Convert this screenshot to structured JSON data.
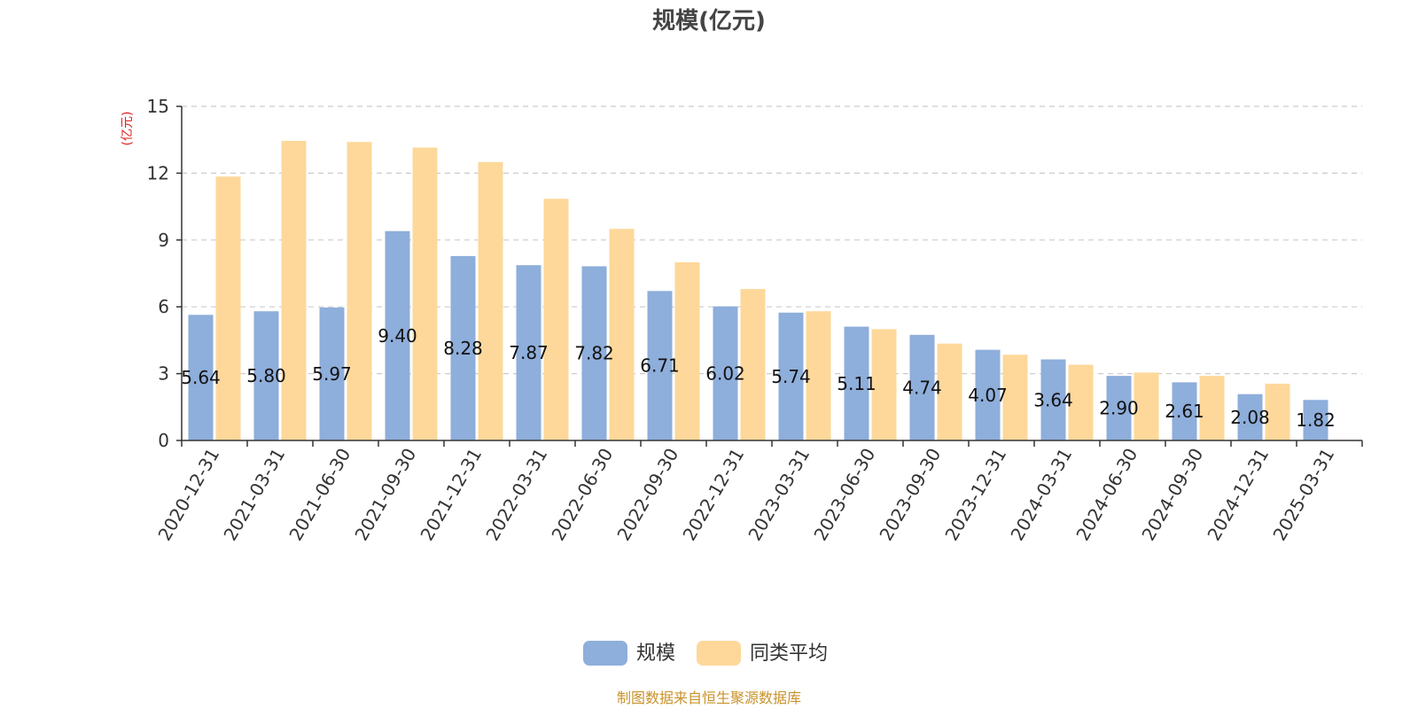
{
  "chart_data": {
    "type": "bar",
    "title": "规模(亿元)",
    "unit_label": "(亿元)",
    "ylim": [
      0,
      15
    ],
    "yticks": [
      0,
      3,
      6,
      9,
      12,
      15
    ],
    "grid": true,
    "legend_position": "bottom",
    "categories": [
      "2020-12-31",
      "2021-03-31",
      "2021-06-30",
      "2021-09-30",
      "2021-12-31",
      "2022-03-31",
      "2022-06-30",
      "2022-09-30",
      "2022-12-31",
      "2023-03-31",
      "2023-06-30",
      "2023-09-30",
      "2023-12-31",
      "2024-03-31",
      "2024-06-30",
      "2024-09-30",
      "2024-12-31",
      "2025-03-31"
    ],
    "series": [
      {
        "name": "规模",
        "color": "#8eaedb",
        "values": [
          5.64,
          5.8,
          5.97,
          9.4,
          8.28,
          7.87,
          7.82,
          6.71,
          6.02,
          5.74,
          5.11,
          4.74,
          4.07,
          3.64,
          2.9,
          2.61,
          2.08,
          1.82
        ],
        "labels": [
          "5.64",
          "5.80",
          "5.97",
          "9.40",
          "8.28",
          "7.87",
          "7.82",
          "6.71",
          "6.02",
          "5.74",
          "5.11",
          "4.74",
          "4.07",
          "3.64",
          "2.90",
          "2.61",
          "2.08",
          "1.82"
        ]
      },
      {
        "name": "同类平均",
        "color": "#fdd89a",
        "values": [
          11.85,
          13.45,
          13.4,
          13.15,
          12.5,
          10.85,
          9.5,
          8.0,
          6.8,
          5.8,
          5.0,
          4.35,
          3.85,
          3.4,
          3.05,
          2.9,
          2.55,
          null
        ]
      }
    ],
    "source": "制图数据来自恒生聚源数据库"
  }
}
